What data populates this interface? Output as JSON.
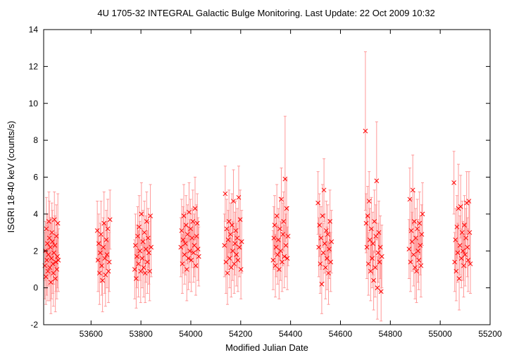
{
  "chart_data": {
    "type": "scatter",
    "title": "4U 1705-32   INTEGRAL Galactic Bulge Monitoring.  Last Update: 22 Oct 2009 10:32",
    "xlabel": "Modified Julian Date",
    "ylabel": "ISGRI 18-40 keV (counts/s)",
    "xlim": [
      53410,
      55200
    ],
    "ylim": [
      -2,
      14
    ],
    "x_ticks": [
      53600,
      53800,
      54000,
      54200,
      54400,
      54600,
      54800,
      55000,
      55200
    ],
    "y_ticks": [
      -2,
      0,
      2,
      4,
      6,
      8,
      10,
      12,
      14
    ],
    "grid": false,
    "legend": "none",
    "marker": "x",
    "color": "#ff0000",
    "errorbar_color": "#ff9999",
    "series": [
      {
        "points": [
          [
            53415,
            1.2,
            1.8
          ],
          [
            53417,
            2.0,
            1.6
          ],
          [
            53419,
            0.6,
            1.5
          ],
          [
            53421,
            3.2,
            1.7
          ],
          [
            53423,
            1.5,
            1.9
          ],
          [
            53425,
            2.4,
            1.6
          ],
          [
            53427,
            0.9,
            1.6
          ],
          [
            53429,
            1.8,
            1.7
          ],
          [
            53431,
            3.6,
            1.6
          ],
          [
            53433,
            2.7,
            2.0
          ],
          [
            53435,
            1.1,
            1.8
          ],
          [
            53437,
            2.2,
            1.6
          ],
          [
            53439,
            0.3,
            1.7
          ],
          [
            53441,
            1.6,
            2.2
          ],
          [
            53443,
            3.0,
            1.6
          ],
          [
            53445,
            2.5,
            1.7
          ],
          [
            53447,
            1.3,
            1.6
          ],
          [
            53449,
            0.8,
            1.8
          ],
          [
            53451,
            1.9,
            1.7
          ],
          [
            53453,
            3.7,
            1.5
          ],
          [
            53455,
            2.3,
            1.6
          ],
          [
            53457,
            0.5,
            1.8
          ],
          [
            53459,
            1.4,
            1.6
          ],
          [
            53461,
            2.8,
            1.7
          ],
          [
            53463,
            1.0,
            1.6
          ],
          [
            53465,
            1.7,
            1.7
          ],
          [
            53467,
            3.5,
            1.6
          ],
          [
            53469,
            1.5,
            1.7
          ],
          [
            53625,
            3.1,
            1.6
          ],
          [
            53628,
            1.5,
            1.7
          ],
          [
            53631,
            2.4,
            1.6
          ],
          [
            53634,
            0.8,
            1.7
          ],
          [
            53637,
            1.9,
            1.6
          ],
          [
            53640,
            2.9,
            1.8
          ],
          [
            53643,
            1.2,
            1.6
          ],
          [
            53646,
            0.4,
            1.7
          ],
          [
            53649,
            2.2,
            1.6
          ],
          [
            53652,
            3.5,
            1.7
          ],
          [
            53655,
            1.6,
            1.9
          ],
          [
            53658,
            0.7,
            1.7
          ],
          [
            53661,
            2.6,
            1.6
          ],
          [
            53664,
            1.8,
            1.8
          ],
          [
            53667,
            3.2,
            1.6
          ],
          [
            53670,
            0.9,
            1.7
          ],
          [
            53673,
            1.4,
            1.6
          ],
          [
            53676,
            3.7,
            1.6
          ],
          [
            53775,
            1.0,
            1.6
          ],
          [
            53778,
            2.3,
            1.7
          ],
          [
            53781,
            0.5,
            1.6
          ],
          [
            53784,
            1.7,
            1.7
          ],
          [
            53787,
            2.8,
            1.6
          ],
          [
            53790,
            1.3,
            1.8
          ],
          [
            53793,
            3.3,
            1.7
          ],
          [
            53796,
            2.0,
            1.6
          ],
          [
            53799,
            0.9,
            1.7
          ],
          [
            53802,
            4.0,
            1.7
          ],
          [
            53805,
            1.6,
            1.6
          ],
          [
            53808,
            2.5,
            1.7
          ],
          [
            53811,
            1.1,
            1.6
          ],
          [
            53814,
            3.0,
            1.7
          ],
          [
            53817,
            0.8,
            1.6
          ],
          [
            53820,
            2.1,
            1.8
          ],
          [
            53823,
            3.6,
            1.6
          ],
          [
            53826,
            1.4,
            1.7
          ],
          [
            53829,
            2.7,
            1.6
          ],
          [
            53832,
            1.9,
            1.7
          ],
          [
            53835,
            0.9,
            1.6
          ],
          [
            53838,
            3.9,
            1.7
          ],
          [
            53841,
            2.2,
            1.6
          ],
          [
            53960,
            2.2,
            1.6
          ],
          [
            53963,
            3.1,
            1.7
          ],
          [
            53966,
            1.3,
            1.6
          ],
          [
            53969,
            2.6,
            1.8
          ],
          [
            53972,
            3.9,
            1.7
          ],
          [
            53975,
            1.8,
            1.6
          ],
          [
            53978,
            2.4,
            1.7
          ],
          [
            53981,
            3.4,
            1.6
          ],
          [
            53984,
            1.0,
            1.7
          ],
          [
            53987,
            2.9,
            1.6
          ],
          [
            53990,
            1.6,
            1.7
          ],
          [
            53993,
            4.1,
            1.6
          ],
          [
            53996,
            2.0,
            1.7
          ],
          [
            53999,
            3.2,
            1.6
          ],
          [
            54002,
            1.5,
            1.7
          ],
          [
            54005,
            2.7,
            1.6
          ],
          [
            54008,
            3.6,
            1.7
          ],
          [
            54011,
            1.9,
            1.6
          ],
          [
            54014,
            2.3,
            1.7
          ],
          [
            54017,
            4.3,
            1.7
          ],
          [
            54020,
            1.2,
            1.6
          ],
          [
            54023,
            2.8,
            1.7
          ],
          [
            54026,
            3.5,
            1.6
          ],
          [
            54029,
            2.1,
            1.7
          ],
          [
            54032,
            1.7,
            1.6
          ],
          [
            54135,
            2.3,
            1.7
          ],
          [
            54138,
            5.1,
            1.5
          ],
          [
            54141,
            1.4,
            1.7
          ],
          [
            54144,
            3.2,
            1.6
          ],
          [
            54147,
            0.8,
            1.7
          ],
          [
            54150,
            2.6,
            1.6
          ],
          [
            54153,
            3.6,
            1.7
          ],
          [
            54156,
            1.6,
            1.6
          ],
          [
            54159,
            2.9,
            1.7
          ],
          [
            54162,
            1.1,
            1.6
          ],
          [
            54165,
            3.4,
            1.7
          ],
          [
            54168,
            2.0,
            1.6
          ],
          [
            54171,
            4.7,
            1.7
          ],
          [
            54174,
            1.3,
            1.6
          ],
          [
            54177,
            2.4,
            1.7
          ],
          [
            54180,
            3.1,
            1.6
          ],
          [
            54183,
            1.8,
            1.7
          ],
          [
            54186,
            2.7,
            1.6
          ],
          [
            54189,
            1.5,
            1.7
          ],
          [
            54192,
            4.9,
            1.7
          ],
          [
            54195,
            2.2,
            1.6
          ],
          [
            54198,
            3.7,
            1.6
          ],
          [
            54201,
            1.0,
            1.6
          ],
          [
            54204,
            2.5,
            1.7
          ],
          [
            54330,
            1.5,
            1.6
          ],
          [
            54333,
            2.7,
            1.7
          ],
          [
            54336,
            3.4,
            1.6
          ],
          [
            54339,
            1.2,
            1.7
          ],
          [
            54342,
            2.2,
            1.6
          ],
          [
            54345,
            3.9,
            1.7
          ],
          [
            54348,
            1.8,
            1.6
          ],
          [
            54351,
            2.6,
            1.7
          ],
          [
            54354,
            1.0,
            1.6
          ],
          [
            54357,
            3.2,
            1.7
          ],
          [
            54360,
            2.0,
            1.6
          ],
          [
            54363,
            4.8,
            1.7
          ],
          [
            54366,
            1.4,
            1.6
          ],
          [
            54369,
            2.9,
            1.7
          ],
          [
            54372,
            3.6,
            1.6
          ],
          [
            54375,
            1.7,
            1.7
          ],
          [
            54378,
            5.9,
            3.4
          ],
          [
            54381,
            2.3,
            1.7
          ],
          [
            54384,
            4.3,
            1.6
          ],
          [
            54387,
            1.6,
            1.7
          ],
          [
            54390,
            2.8,
            1.6
          ],
          [
            54510,
            4.6,
            1.7
          ],
          [
            54513,
            2.2,
            1.6
          ],
          [
            54516,
            3.4,
            1.7
          ],
          [
            54519,
            1.3,
            1.6
          ],
          [
            54522,
            2.7,
            1.7
          ],
          [
            54525,
            0.2,
            1.6
          ],
          [
            54528,
            3.9,
            1.7
          ],
          [
            54531,
            1.9,
            1.6
          ],
          [
            54534,
            5.3,
            1.7
          ],
          [
            54537,
            2.4,
            1.6
          ],
          [
            54540,
            1.1,
            1.7
          ],
          [
            54543,
            3.1,
            1.6
          ],
          [
            54546,
            1.6,
            1.7
          ],
          [
            54549,
            2.9,
            1.6
          ],
          [
            54552,
            0.8,
            1.7
          ],
          [
            54555,
            2.1,
            1.6
          ],
          [
            54558,
            3.6,
            1.7
          ],
          [
            54561,
            1.4,
            1.6
          ],
          [
            54564,
            2.5,
            1.7
          ],
          [
            54700,
            8.5,
            4.3
          ],
          [
            54703,
            3.5,
            1.6
          ],
          [
            54706,
            2.2,
            1.7
          ],
          [
            54709,
            3.9,
            1.6
          ],
          [
            54712,
            1.3,
            1.7
          ],
          [
            54715,
            4.7,
            1.6
          ],
          [
            54718,
            2.6,
            1.7
          ],
          [
            54721,
            0.9,
            1.6
          ],
          [
            54724,
            3.2,
            1.7
          ],
          [
            54727,
            1.6,
            1.6
          ],
          [
            54730,
            2.4,
            1.7
          ],
          [
            54733,
            0.4,
            1.6
          ],
          [
            54736,
            3.6,
            1.7
          ],
          [
            54739,
            1.1,
            1.6
          ],
          [
            54742,
            2.8,
            1.7
          ],
          [
            54745,
            5.8,
            3.2
          ],
          [
            54748,
            0.0,
            1.7
          ],
          [
            54751,
            1.9,
            1.6
          ],
          [
            54754,
            3.0,
            1.7
          ],
          [
            54757,
            1.4,
            1.6
          ],
          [
            54760,
            2.2,
            1.7
          ],
          [
            54763,
            -0.2,
            1.6
          ],
          [
            54766,
            1.7,
            1.7
          ],
          [
            54875,
            2.1,
            1.6
          ],
          [
            54878,
            4.8,
            1.7
          ],
          [
            54881,
            1.4,
            1.6
          ],
          [
            54884,
            3.1,
            1.7
          ],
          [
            54887,
            2.5,
            1.6
          ],
          [
            54890,
            5.3,
            1.9
          ],
          [
            54893,
            1.8,
            1.7
          ],
          [
            54896,
            3.6,
            1.6
          ],
          [
            54899,
            1.1,
            1.7
          ],
          [
            54902,
            2.7,
            1.6
          ],
          [
            54905,
            0.9,
            1.7
          ],
          [
            54908,
            3.2,
            1.6
          ],
          [
            54911,
            2.0,
            1.7
          ],
          [
            54914,
            1.5,
            1.6
          ],
          [
            54917,
            3.5,
            1.7
          ],
          [
            54920,
            2.3,
            1.6
          ],
          [
            54923,
            1.2,
            1.7
          ],
          [
            54926,
            2.9,
            1.6
          ],
          [
            54929,
            4.0,
            1.7
          ],
          [
            55055,
            5.7,
            1.7
          ],
          [
            55058,
            1.4,
            1.6
          ],
          [
            55061,
            2.6,
            1.7
          ],
          [
            55064,
            0.9,
            1.6
          ],
          [
            55067,
            3.3,
            1.7
          ],
          [
            55070,
            1.9,
            1.6
          ],
          [
            55073,
            4.3,
            2.4
          ],
          [
            55076,
            0.5,
            1.7
          ],
          [
            55079,
            2.3,
            1.6
          ],
          [
            55082,
            4.4,
            1.7
          ],
          [
            55085,
            1.6,
            1.6
          ],
          [
            55088,
            3.0,
            1.7
          ],
          [
            55091,
            2.0,
            1.6
          ],
          [
            55094,
            1.2,
            1.7
          ],
          [
            55097,
            3.4,
            1.6
          ],
          [
            55100,
            1.8,
            1.7
          ],
          [
            55103,
            2.7,
            1.6
          ],
          [
            55106,
            4.6,
            1.7
          ],
          [
            55109,
            2.2,
            1.6
          ],
          [
            55112,
            1.5,
            1.7
          ],
          [
            55115,
            4.7,
            1.6
          ],
          [
            55118,
            3.0,
            1.7
          ],
          [
            55121,
            1.3,
            1.6
          ]
        ]
      }
    ]
  }
}
